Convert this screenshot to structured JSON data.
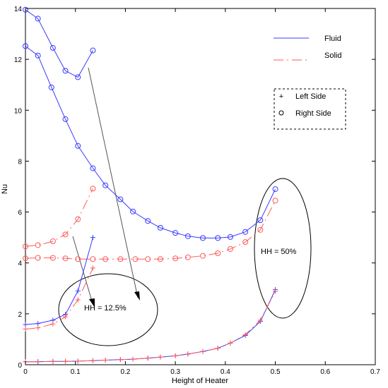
{
  "chart_data": {
    "type": "line",
    "xlabel": "Height of Heater",
    "ylabel": "Nu",
    "xlim": [
      0,
      0.7
    ],
    "ylim": [
      0,
      14
    ],
    "x_ticks": [
      0,
      0.1,
      0.2,
      0.3,
      0.4,
      0.5,
      0.6,
      0.7
    ],
    "y_ticks": [
      0,
      2,
      4,
      6,
      8,
      10,
      12,
      14
    ],
    "x_tick_labels": [
      "0",
      "0.1",
      "0.2",
      "0.3",
      "0.4",
      "0.5",
      "0.6",
      "0.7"
    ],
    "y_tick_labels": [
      "0",
      "2",
      "4",
      "6",
      "8",
      "10",
      "12",
      "14"
    ],
    "grid": false,
    "legend": {
      "placement": "top-right",
      "lines": [
        {
          "label": "Fluid",
          "color": "#3a3aff",
          "dash": "solid"
        },
        {
          "label": "Solid",
          "color": "#ff5a5a",
          "dash": "dashdot"
        }
      ],
      "markers": [
        {
          "label": "Left Side",
          "marker": "+"
        },
        {
          "label": "Right Side",
          "marker": "o"
        }
      ]
    },
    "series": [
      {
        "style": "fluid",
        "marker": "o",
        "x": [
          0,
          0.025,
          0.055,
          0.08,
          0.105,
          0.135
        ],
        "y": [
          13.95,
          13.6,
          12.45,
          11.55,
          11.3,
          12.35
        ]
      },
      {
        "style": "fluid",
        "marker": "o",
        "x": [
          0,
          0.025,
          0.052,
          0.08,
          0.105,
          0.135,
          0.16,
          0.19,
          0.215,
          0.245,
          0.27,
          0.3,
          0.325,
          0.355,
          0.385,
          0.41,
          0.44,
          0.47,
          0.5
        ],
        "y": [
          12.52,
          12.15,
          10.9,
          9.65,
          8.6,
          7.72,
          7.05,
          6.5,
          6.02,
          5.65,
          5.38,
          5.18,
          5.05,
          4.98,
          4.98,
          5.02,
          5.22,
          5.68,
          6.9
        ]
      },
      {
        "style": "solid",
        "marker": "o",
        "x": [
          0,
          0.025,
          0.055,
          0.08,
          0.105,
          0.135
        ],
        "y": [
          4.65,
          4.7,
          4.85,
          5.12,
          5.72,
          6.92
        ]
      },
      {
        "style": "solid",
        "marker": "o",
        "x": [
          0,
          0.025,
          0.055,
          0.08,
          0.105,
          0.135,
          0.16,
          0.19,
          0.22,
          0.245,
          0.27,
          0.3,
          0.325,
          0.355,
          0.385,
          0.41,
          0.44,
          0.47,
          0.5
        ],
        "y": [
          4.18,
          4.2,
          4.2,
          4.18,
          4.15,
          4.15,
          4.15,
          4.15,
          4.15,
          4.15,
          4.15,
          4.18,
          4.22,
          4.28,
          4.38,
          4.55,
          4.82,
          5.3,
          6.45
        ]
      },
      {
        "style": "fluid",
        "marker": "+",
        "x": [
          0,
          0.025,
          0.055,
          0.08,
          0.105,
          0.135
        ],
        "y": [
          1.58,
          1.62,
          1.75,
          1.98,
          2.9,
          5.0
        ]
      },
      {
        "style": "solid",
        "marker": "+",
        "x": [
          0,
          0.025,
          0.055,
          0.08,
          0.105,
          0.135
        ],
        "y": [
          1.4,
          1.45,
          1.6,
          1.88,
          2.55,
          3.8
        ]
      },
      {
        "style": "fluid",
        "marker": "+",
        "x": [
          0,
          0.025,
          0.055,
          0.08,
          0.105,
          0.135,
          0.16,
          0.19,
          0.215,
          0.245,
          0.27,
          0.3,
          0.325,
          0.355,
          0.385,
          0.41,
          0.44,
          0.47,
          0.5
        ],
        "y": [
          0.12,
          0.12,
          0.13,
          0.13,
          0.14,
          0.16,
          0.18,
          0.2,
          0.22,
          0.26,
          0.3,
          0.35,
          0.42,
          0.52,
          0.65,
          0.85,
          1.15,
          1.7,
          2.95
        ]
      },
      {
        "style": "solid",
        "marker": "+",
        "x": [
          0,
          0.025,
          0.055,
          0.08,
          0.105,
          0.135,
          0.16,
          0.19,
          0.215,
          0.245,
          0.27,
          0.3,
          0.325,
          0.355,
          0.385,
          0.41,
          0.44,
          0.47,
          0.5
        ],
        "y": [
          0.12,
          0.12,
          0.13,
          0.13,
          0.14,
          0.16,
          0.18,
          0.2,
          0.22,
          0.26,
          0.3,
          0.35,
          0.42,
          0.52,
          0.65,
          0.85,
          1.18,
          1.75,
          2.88
        ]
      }
    ],
    "annotations": [
      {
        "text": "HH = 12.5%",
        "x": 0.11,
        "y": 2.2
      },
      {
        "text": "HH = 50%",
        "x": 0.455,
        "y": 4.45
      }
    ]
  }
}
